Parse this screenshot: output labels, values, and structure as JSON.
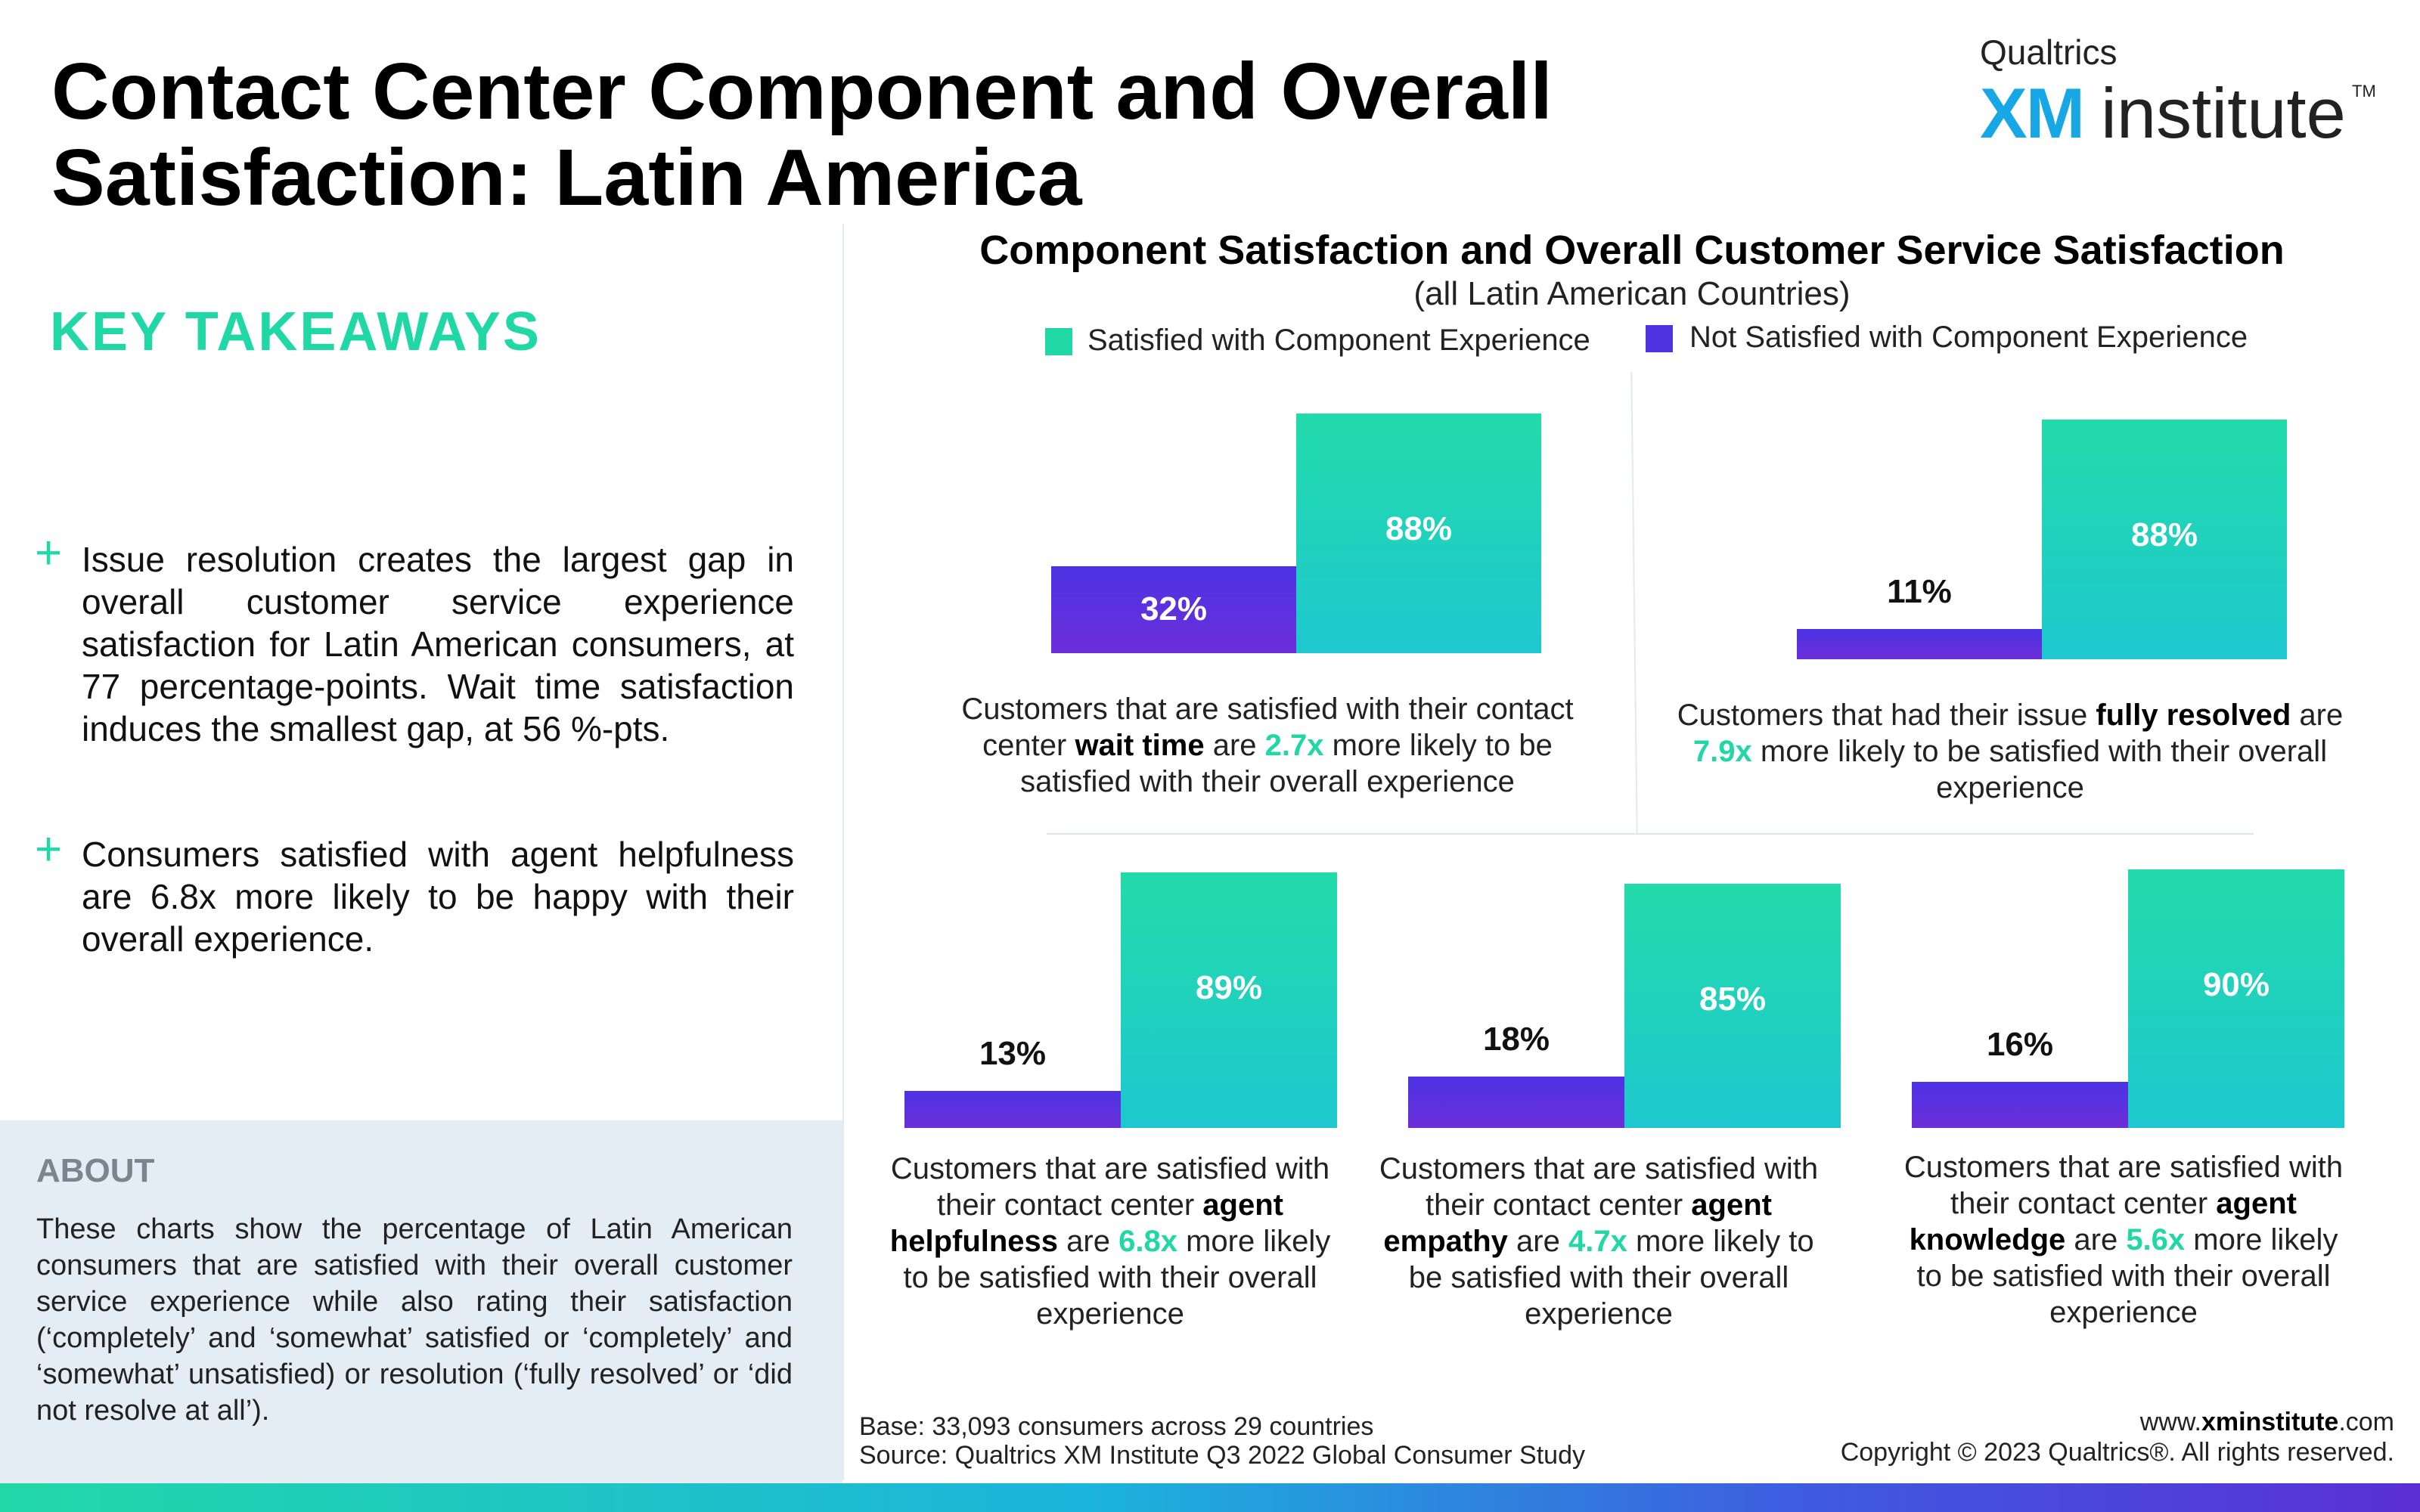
{
  "title": "Contact Center Component and Overall Satisfaction: Latin America",
  "logo": {
    "top": "Qualtrics",
    "xm": "XM",
    "institute": "institute",
    "tm": "TM"
  },
  "key_takeaways": {
    "heading": "KEY TAKEAWAYS",
    "items": [
      "Issue resolution creates the largest gap in overall customer service experience satisfaction for Latin American consumers, at 77 percentage-points. Wait time satisfaction induces the smallest gap, at 56 %-pts.",
      "Consumers satisfied with agent helpfulness are 6.8x more likely to be happy with their overall experience."
    ]
  },
  "about": {
    "heading": "ABOUT",
    "text": "These charts show the percentage of Latin American consumers that are satisfied with their overall customer service experience while also rating their satisfaction (‘completely’ and ‘somewhat’ satisfied or ‘completely’ and ‘somewhat’ unsatisfied) or resolution (‘fully resolved’ or ‘did not resolve at all’)."
  },
  "colors": {
    "satisfied": "#20d7a6",
    "not_satisfied": "#5330e0",
    "accent": "#20d7a6"
  },
  "chart_data": {
    "type": "bar",
    "title": "Component Satisfaction and Overall Customer Service Satisfaction",
    "subtitle": "(all Latin American Countries)",
    "legend": [
      "Satisfied with Component Experience",
      "Not Satisfied with Component Experience"
    ],
    "legend_position": "top",
    "series_names": [
      "Not Satisfied with Component Experience",
      "Satisfied with Component Experience"
    ],
    "unit": "%",
    "panels": [
      {
        "not_satisfied": 32,
        "satisfied": 88,
        "value_labels": [
          "32%",
          "88%"
        ],
        "caption": {
          "pre": "Customers that are satisfied with their contact center ",
          "bold": "wait time",
          "mid": " are ",
          "mult": "2.7x",
          "post": " more likely to be satisfied with their overall experience"
        }
      },
      {
        "not_satisfied": 11,
        "satisfied": 88,
        "value_labels": [
          "11%",
          "88%"
        ],
        "caption": {
          "pre": "Customers that had their issue ",
          "bold": "fully resolved",
          "mid": " are ",
          "mult": "7.9x",
          "post": " more likely to be satisfied with their overall experience"
        }
      },
      {
        "not_satisfied": 13,
        "satisfied": 89,
        "value_labels": [
          "13%",
          "89%"
        ],
        "caption": {
          "pre": "Customers that are satisfied with their contact center ",
          "bold": "agent helpfulness",
          "mid": " are ",
          "mult": "6.8x",
          "post": " more likely to be satisfied with their overall experience"
        }
      },
      {
        "not_satisfied": 18,
        "satisfied": 85,
        "value_labels": [
          "18%",
          "85%"
        ],
        "caption": {
          "pre": "Customers that are satisfied with their contact center ",
          "bold": "agent empathy",
          "mid": " are ",
          "mult": "4.7x",
          "post": " more likely to be satisfied with their overall experience"
        }
      },
      {
        "not_satisfied": 16,
        "satisfied": 90,
        "value_labels": [
          "16%",
          "90%"
        ],
        "caption": {
          "pre": "Customers that are satisfied with their contact center ",
          "bold": "agent knowledge",
          "mid": " are ",
          "mult": "5.6x",
          "post": " more likely to be satisfied with their overall experience"
        }
      }
    ]
  },
  "footer": {
    "base": "Base: 33,093 consumers across 29 countries",
    "source": "Source: Qualtrics XM Institute Q3 2022 Global Consumer Study",
    "url_prefix": "www.",
    "url_bold": "xminstitute",
    "url_suffix": ".com",
    "copyright": "Copyright © 2023 Qualtrics®. All rights reserved."
  }
}
